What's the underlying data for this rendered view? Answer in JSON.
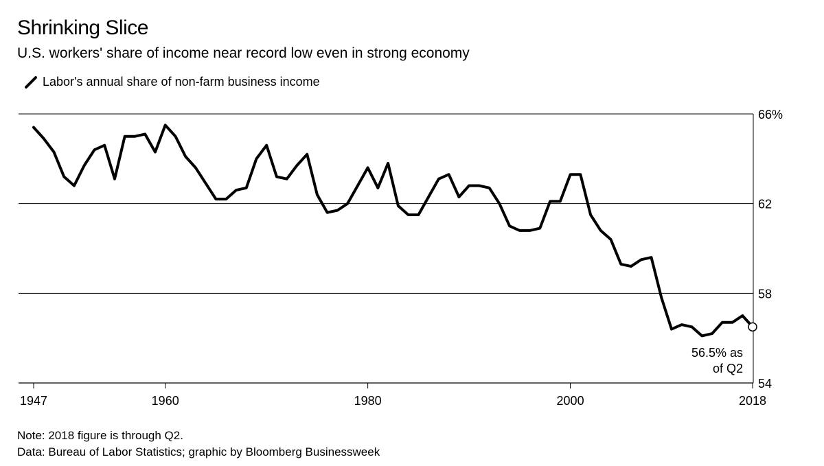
{
  "header": {
    "title": "Shrinking Slice",
    "subtitle": "U.S. workers' share of income near record low even in strong economy"
  },
  "legend": {
    "label": "Labor's annual share of non-farm business income",
    "color": "#000000"
  },
  "footer": {
    "note": "Note: 2018 figure is through Q2.",
    "source": "Data: Bureau of Labor Statistics; graphic by Bloomberg Businessweek"
  },
  "chart_data": {
    "type": "line",
    "title": "Shrinking Slice",
    "subtitle": "U.S. workers' share of income near record low even in strong economy",
    "xlabel": "",
    "ylabel": "",
    "xlim": [
      1947,
      2018
    ],
    "ylim": [
      54,
      66
    ],
    "x_ticks": [
      "1947",
      "1960",
      "1980",
      "2000",
      "2018"
    ],
    "y_ticks": [
      "66%",
      "62",
      "58",
      "54"
    ],
    "grid": "horizontal",
    "y_axis_position": "right",
    "legend_position": "top-left",
    "series": [
      {
        "name": "Labor's annual share of non-farm business income",
        "color": "#000000",
        "x": [
          1947,
          1948,
          1949,
          1950,
          1951,
          1952,
          1953,
          1954,
          1955,
          1956,
          1957,
          1958,
          1959,
          1960,
          1961,
          1962,
          1963,
          1964,
          1965,
          1966,
          1967,
          1968,
          1969,
          1970,
          1971,
          1972,
          1973,
          1974,
          1975,
          1976,
          1977,
          1978,
          1979,
          1980,
          1981,
          1982,
          1983,
          1984,
          1985,
          1986,
          1987,
          1988,
          1989,
          1990,
          1991,
          1992,
          1993,
          1994,
          1995,
          1996,
          1997,
          1998,
          1999,
          2000,
          2001,
          2002,
          2003,
          2004,
          2005,
          2006,
          2007,
          2008,
          2009,
          2010,
          2011,
          2012,
          2013,
          2014,
          2015,
          2016,
          2017,
          2018
        ],
        "values": [
          65.4,
          64.9,
          64.3,
          63.2,
          62.8,
          63.7,
          64.4,
          64.6,
          63.1,
          65.0,
          65.0,
          65.1,
          64.3,
          65.5,
          65.0,
          64.1,
          63.6,
          62.9,
          62.2,
          62.2,
          62.6,
          62.7,
          64.0,
          64.6,
          63.2,
          63.1,
          63.7,
          64.2,
          62.4,
          61.6,
          61.7,
          62.0,
          62.8,
          63.6,
          62.7,
          63.8,
          61.9,
          61.5,
          61.5,
          62.3,
          63.1,
          63.3,
          62.3,
          62.8,
          62.8,
          62.7,
          62.0,
          61.0,
          60.8,
          60.8,
          60.9,
          62.1,
          62.1,
          63.3,
          63.3,
          61.5,
          60.8,
          60.4,
          59.3,
          59.2,
          59.5,
          59.6,
          57.8,
          56.4,
          56.6,
          56.5,
          56.1,
          56.2,
          56.7,
          56.7,
          57.0,
          56.5
        ]
      }
    ],
    "annotations": [
      {
        "x": 2018,
        "y": 56.5,
        "text_line1": "56.5% as",
        "text_line2": "of Q2"
      }
    ]
  }
}
